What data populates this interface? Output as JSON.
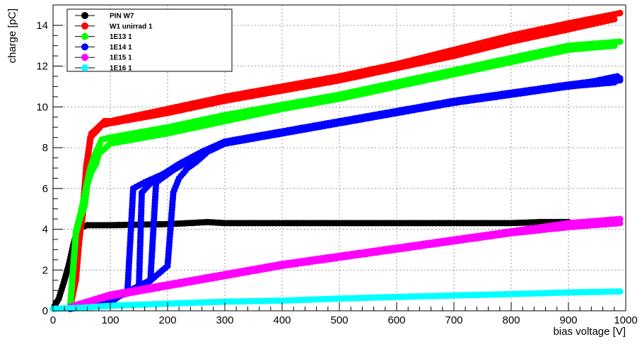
{
  "chart_data": {
    "type": "scatter",
    "title": "",
    "xlabel": "bias voltage [V]",
    "ylabel": "charge [pC]",
    "xlim": [
      0,
      1000
    ],
    "ylim": [
      0,
      15
    ],
    "xticks": [
      0,
      100,
      200,
      300,
      400,
      500,
      600,
      700,
      800,
      900,
      1000
    ],
    "yticks": [
      0,
      2,
      4,
      6,
      8,
      10,
      12,
      14
    ],
    "grid": true,
    "legend_position": "top-left",
    "series": [
      {
        "name": "PIN W7",
        "color": "#000000",
        "sweeps": [
          [
            [
              0,
              0.1
            ],
            [
              10,
              0.6
            ],
            [
              20,
              1.5
            ],
            [
              28,
              2.3
            ],
            [
              35,
              3.2
            ],
            [
              42,
              3.9
            ],
            [
              50,
              4.1
            ],
            [
              60,
              4.2
            ],
            [
              100,
              4.2
            ],
            [
              200,
              4.25
            ],
            [
              270,
              4.35
            ],
            [
              300,
              4.3
            ],
            [
              400,
              4.3
            ],
            [
              500,
              4.3
            ],
            [
              600,
              4.3
            ],
            [
              700,
              4.3
            ],
            [
              800,
              4.3
            ],
            [
              850,
              4.35
            ],
            [
              900,
              4.35
            ]
          ]
        ]
      },
      {
        "name": "W1 unirrad 1",
        "color": "#ff0000",
        "sweeps": [
          [
            [
              30,
              0.2
            ],
            [
              40,
              1.5
            ],
            [
              45,
              3.2
            ],
            [
              50,
              4.5
            ],
            [
              58,
              6.9
            ],
            [
              65,
              8.5
            ],
            [
              72,
              8.7
            ],
            [
              85,
              9.1
            ],
            [
              100,
              9.2
            ],
            [
              200,
              9.7
            ],
            [
              300,
              10.3
            ],
            [
              400,
              10.8
            ],
            [
              500,
              11.3
            ],
            [
              600,
              11.9
            ],
            [
              700,
              12.5
            ],
            [
              800,
              13.2
            ],
            [
              900,
              13.8
            ],
            [
              980,
              14.3
            ]
          ],
          [
            [
              30,
              0.2
            ],
            [
              40,
              1.8
            ],
            [
              45,
              3.4
            ],
            [
              52,
              4.7
            ],
            [
              58,
              7.1
            ],
            [
              67,
              8.7
            ],
            [
              75,
              8.9
            ],
            [
              90,
              9.3
            ],
            [
              100,
              9.3
            ],
            [
              200,
              9.9
            ],
            [
              300,
              10.5
            ],
            [
              400,
              11.0
            ],
            [
              500,
              11.5
            ],
            [
              600,
              12.1
            ],
            [
              700,
              12.8
            ],
            [
              800,
              13.5
            ],
            [
              900,
              14.1
            ],
            [
              990,
              14.6
            ]
          ]
        ]
      },
      {
        "name": "1E13 1",
        "color": "#00ff00",
        "sweeps": [
          [
            [
              30,
              0.2
            ],
            [
              40,
              3.8
            ],
            [
              48,
              4.6
            ],
            [
              55,
              5.1
            ],
            [
              60,
              6.2
            ],
            [
              67,
              6.8
            ],
            [
              75,
              7.2
            ],
            [
              80,
              7.7
            ],
            [
              100,
              8.2
            ],
            [
              200,
              8.7
            ],
            [
              300,
              9.3
            ],
            [
              400,
              9.9
            ],
            [
              500,
              10.4
            ],
            [
              600,
              11.0
            ],
            [
              700,
              11.6
            ],
            [
              800,
              12.2
            ],
            [
              900,
              12.8
            ],
            [
              980,
              13.0
            ]
          ],
          [
            [
              30,
              0.2
            ],
            [
              40,
              3.9
            ],
            [
              50,
              5.0
            ],
            [
              58,
              6.1
            ],
            [
              65,
              7.0
            ],
            [
              72,
              7.6
            ],
            [
              85,
              8.4
            ],
            [
              100,
              8.5
            ],
            [
              200,
              9.0
            ],
            [
              300,
              9.6
            ],
            [
              400,
              10.1
            ],
            [
              500,
              10.6
            ],
            [
              600,
              11.2
            ],
            [
              700,
              11.8
            ],
            [
              800,
              12.4
            ],
            [
              900,
              13.0
            ],
            [
              990,
              13.2
            ]
          ]
        ]
      },
      {
        "name": "1E14 1",
        "color": "#0000ff",
        "sweeps": [
          [
            [
              30,
              0.1
            ],
            [
              100,
              0.4
            ],
            [
              130,
              1.0
            ],
            [
              140,
              6.0
            ],
            [
              160,
              6.3
            ],
            [
              200,
              6.8
            ],
            [
              250,
              7.6
            ],
            [
              300,
              8.2
            ],
            [
              400,
              8.7
            ],
            [
              500,
              9.2
            ],
            [
              600,
              9.7
            ],
            [
              700,
              10.2
            ],
            [
              800,
              10.6
            ],
            [
              900,
              11.0
            ],
            [
              990,
              11.3
            ]
          ],
          [
            [
              30,
              0.1
            ],
            [
              100,
              0.5
            ],
            [
              150,
              1.2
            ],
            [
              155,
              5.8
            ],
            [
              175,
              6.4
            ],
            [
              220,
              7.2
            ],
            [
              260,
              7.8
            ],
            [
              300,
              8.3
            ],
            [
              400,
              8.8
            ],
            [
              500,
              9.3
            ],
            [
              600,
              9.8
            ],
            [
              700,
              10.3
            ],
            [
              800,
              10.7
            ],
            [
              900,
              11.1
            ],
            [
              990,
              11.4
            ]
          ],
          [
            [
              30,
              0.1
            ],
            [
              120,
              0.8
            ],
            [
              170,
              1.5
            ],
            [
              180,
              6.3
            ],
            [
              210,
              6.9
            ],
            [
              240,
              7.4
            ],
            [
              270,
              7.9
            ],
            [
              300,
              8.2
            ],
            [
              400,
              8.7
            ],
            [
              500,
              9.2
            ],
            [
              600,
              9.7
            ],
            [
              700,
              10.2
            ],
            [
              800,
              10.6
            ],
            [
              900,
              11.0
            ],
            [
              985,
              11.5
            ]
          ],
          [
            [
              30,
              0.1
            ],
            [
              150,
              1.0
            ],
            [
              200,
              2.2
            ],
            [
              210,
              5.8
            ],
            [
              220,
              6.5
            ],
            [
              235,
              7.0
            ],
            [
              250,
              7.3
            ],
            [
              270,
              7.8
            ],
            [
              300,
              8.2
            ],
            [
              400,
              8.7
            ],
            [
              500,
              9.2
            ],
            [
              600,
              9.7
            ],
            [
              700,
              10.2
            ],
            [
              800,
              10.6
            ],
            [
              900,
              11.0
            ],
            [
              980,
              11.2
            ]
          ]
        ]
      },
      {
        "name": "1E15 1",
        "color": "#ff00ff",
        "sweeps": [
          [
            [
              30,
              0.2
            ],
            [
              100,
              0.7
            ],
            [
              200,
              1.2
            ],
            [
              300,
              1.7
            ],
            [
              400,
              2.2
            ],
            [
              500,
              2.6
            ],
            [
              600,
              3.0
            ],
            [
              700,
              3.4
            ],
            [
              800,
              3.8
            ],
            [
              900,
              4.1
            ],
            [
              990,
              4.3
            ]
          ],
          [
            [
              30,
              0.2
            ],
            [
              100,
              0.8
            ],
            [
              200,
              1.3
            ],
            [
              300,
              1.8
            ],
            [
              400,
              2.3
            ],
            [
              500,
              2.7
            ],
            [
              600,
              3.1
            ],
            [
              700,
              3.5
            ],
            [
              800,
              3.9
            ],
            [
              900,
              4.3
            ],
            [
              990,
              4.5
            ]
          ]
        ]
      },
      {
        "name": "1E16 1",
        "color": "#00ffff",
        "sweeps": [
          [
            [
              0,
              0.1
            ],
            [
              50,
              0.15
            ],
            [
              100,
              0.25
            ],
            [
              200,
              0.35
            ],
            [
              300,
              0.45
            ],
            [
              400,
              0.5
            ],
            [
              500,
              0.6
            ],
            [
              600,
              0.68
            ],
            [
              700,
              0.75
            ],
            [
              800,
              0.82
            ],
            [
              900,
              0.9
            ],
            [
              990,
              0.95
            ]
          ]
        ]
      }
    ]
  }
}
